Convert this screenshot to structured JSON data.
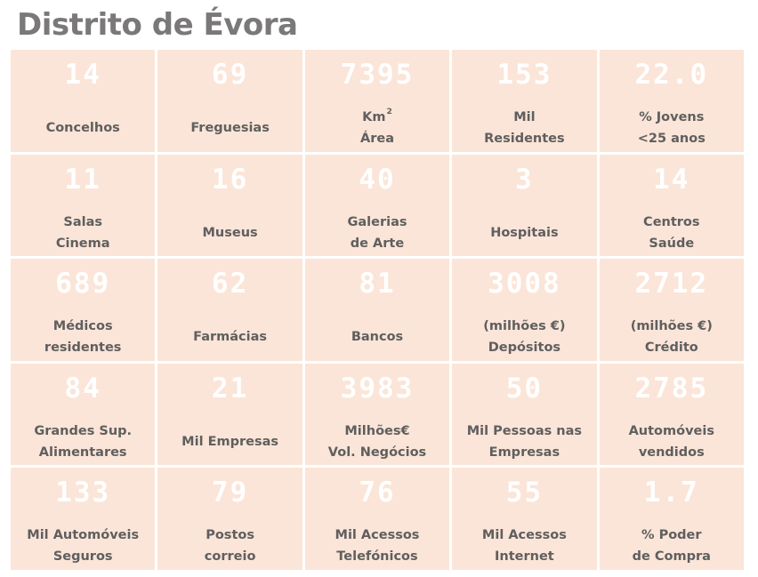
{
  "title": "Distrito de Évora",
  "cells": [
    {
      "value": "14",
      "lines": [
        "Concelhos"
      ]
    },
    {
      "value": "69",
      "lines": [
        "Freguesias"
      ]
    },
    {
      "value": "7395",
      "lines": [
        "Km",
        "Área"
      ],
      "sup": "2"
    },
    {
      "value": "153",
      "lines": [
        "Mil",
        "Residentes"
      ]
    },
    {
      "value": "22.0",
      "lines": [
        "% Jovens",
        "<25 anos"
      ]
    },
    {
      "value": "11",
      "lines": [
        "Salas",
        "Cinema"
      ]
    },
    {
      "value": "16",
      "lines": [
        "Museus"
      ]
    },
    {
      "value": "40",
      "lines": [
        "Galerias",
        "de Arte"
      ]
    },
    {
      "value": "3",
      "lines": [
        "Hospitais"
      ]
    },
    {
      "value": "14",
      "lines": [
        "Centros",
        "Saúde"
      ]
    },
    {
      "value": "689",
      "lines": [
        "Médicos",
        "residentes"
      ]
    },
    {
      "value": "62",
      "lines": [
        "Farmácias"
      ]
    },
    {
      "value": "81",
      "lines": [
        "Bancos"
      ]
    },
    {
      "value": "3008",
      "lines": [
        "(milhões €)",
        "Depósitos"
      ]
    },
    {
      "value": "2712",
      "lines": [
        "(milhões €)",
        "Crédito"
      ]
    },
    {
      "value": "84",
      "lines": [
        "Grandes Sup.",
        "Alimentares"
      ]
    },
    {
      "value": "21",
      "lines": [
        "Mil Empresas"
      ]
    },
    {
      "value": "3983",
      "lines": [
        "Milhões€",
        "Vol. Negócios"
      ]
    },
    {
      "value": "50",
      "lines": [
        "Mil Pessoas nas",
        "Empresas"
      ]
    },
    {
      "value": "2785",
      "lines": [
        "Automóveis",
        "vendidos"
      ]
    },
    {
      "value": "133",
      "lines": [
        "Mil Automóveis",
        "Seguros"
      ]
    },
    {
      "value": "79",
      "lines": [
        "Postos",
        "correio"
      ]
    },
    {
      "value": "76",
      "lines": [
        "Mil Acessos",
        "Telefónicos"
      ]
    },
    {
      "value": "55",
      "lines": [
        "Mil Acessos",
        "Internet"
      ]
    },
    {
      "value": "1.7",
      "lines": [
        "% Poder",
        "de Compra"
      ]
    }
  ],
  "colors": {
    "cell_background": "#fbe5d8",
    "value_text": "#ffffff",
    "label_text": "#5f5f5f",
    "title_text": "#7a7878"
  }
}
